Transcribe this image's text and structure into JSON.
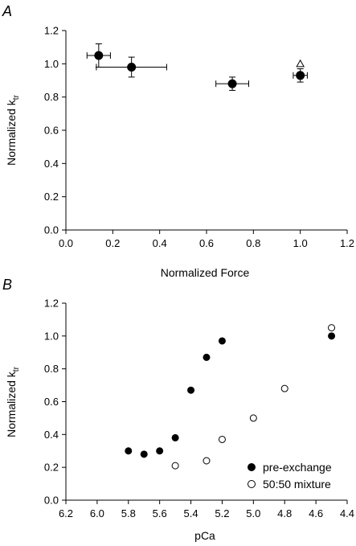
{
  "chart_data": [
    {
      "panel": "A",
      "type": "scatter",
      "xlabel": "Normalized Force",
      "ylabel_main": "Normalized k",
      "ylabel_sub": "tr",
      "xlim": [
        0,
        1.2
      ],
      "ylim": [
        0,
        1.2
      ],
      "x_ticks": [
        "0.0",
        "0.2",
        "0.4",
        "0.6",
        "0.8",
        "1.0",
        "1.2"
      ],
      "y_ticks": [
        "0.0",
        "0.2",
        "0.4",
        "0.6",
        "0.8",
        "1.0",
        "1.2"
      ],
      "series": [
        {
          "marker": "filled-circle",
          "points": [
            {
              "x": 0.14,
              "y": 1.05,
              "xerr": 0.05,
              "yerr": 0.07
            },
            {
              "x": 0.28,
              "y": 0.98,
              "xerr": 0.15,
              "yerr": 0.06
            },
            {
              "x": 0.71,
              "y": 0.88,
              "xerr": 0.07,
              "yerr": 0.04
            },
            {
              "x": 1.0,
              "y": 0.93,
              "xerr": 0.03,
              "yerr": 0.04
            }
          ]
        },
        {
          "marker": "open-triangle",
          "points": [
            {
              "x": 1.0,
              "y": 1.0
            }
          ]
        }
      ]
    },
    {
      "panel": "B",
      "type": "scatter",
      "xlabel": "pCa",
      "ylabel_main": "Normalized k",
      "ylabel_sub": "tr",
      "xlim": [
        6.2,
        4.4
      ],
      "ylim": [
        0,
        1.2
      ],
      "x_ticks": [
        "6.2",
        "6.0",
        "5.8",
        "5.6",
        "5.4",
        "5.2",
        "5.0",
        "4.8",
        "4.6",
        "4.4"
      ],
      "y_ticks": [
        "0.0",
        "0.2",
        "0.4",
        "0.6",
        "0.8",
        "1.0",
        "1.2"
      ],
      "legend_position": "bottom-right",
      "series": [
        {
          "name": "pre-exchange",
          "marker": "filled-circle",
          "points": [
            {
              "x": 5.8,
              "y": 0.3
            },
            {
              "x": 5.7,
              "y": 0.28
            },
            {
              "x": 5.6,
              "y": 0.3
            },
            {
              "x": 5.5,
              "y": 0.38
            },
            {
              "x": 5.4,
              "y": 0.67
            },
            {
              "x": 5.3,
              "y": 0.87
            },
            {
              "x": 5.2,
              "y": 0.97
            },
            {
              "x": 4.5,
              "y": 1.0
            }
          ]
        },
        {
          "name": "50:50 mixture",
          "marker": "open-circle",
          "points": [
            {
              "x": 5.5,
              "y": 0.21
            },
            {
              "x": 5.3,
              "y": 0.24
            },
            {
              "x": 5.2,
              "y": 0.37
            },
            {
              "x": 5.0,
              "y": 0.5
            },
            {
              "x": 4.8,
              "y": 0.68
            },
            {
              "x": 4.5,
              "y": 1.05
            }
          ]
        }
      ]
    }
  ]
}
